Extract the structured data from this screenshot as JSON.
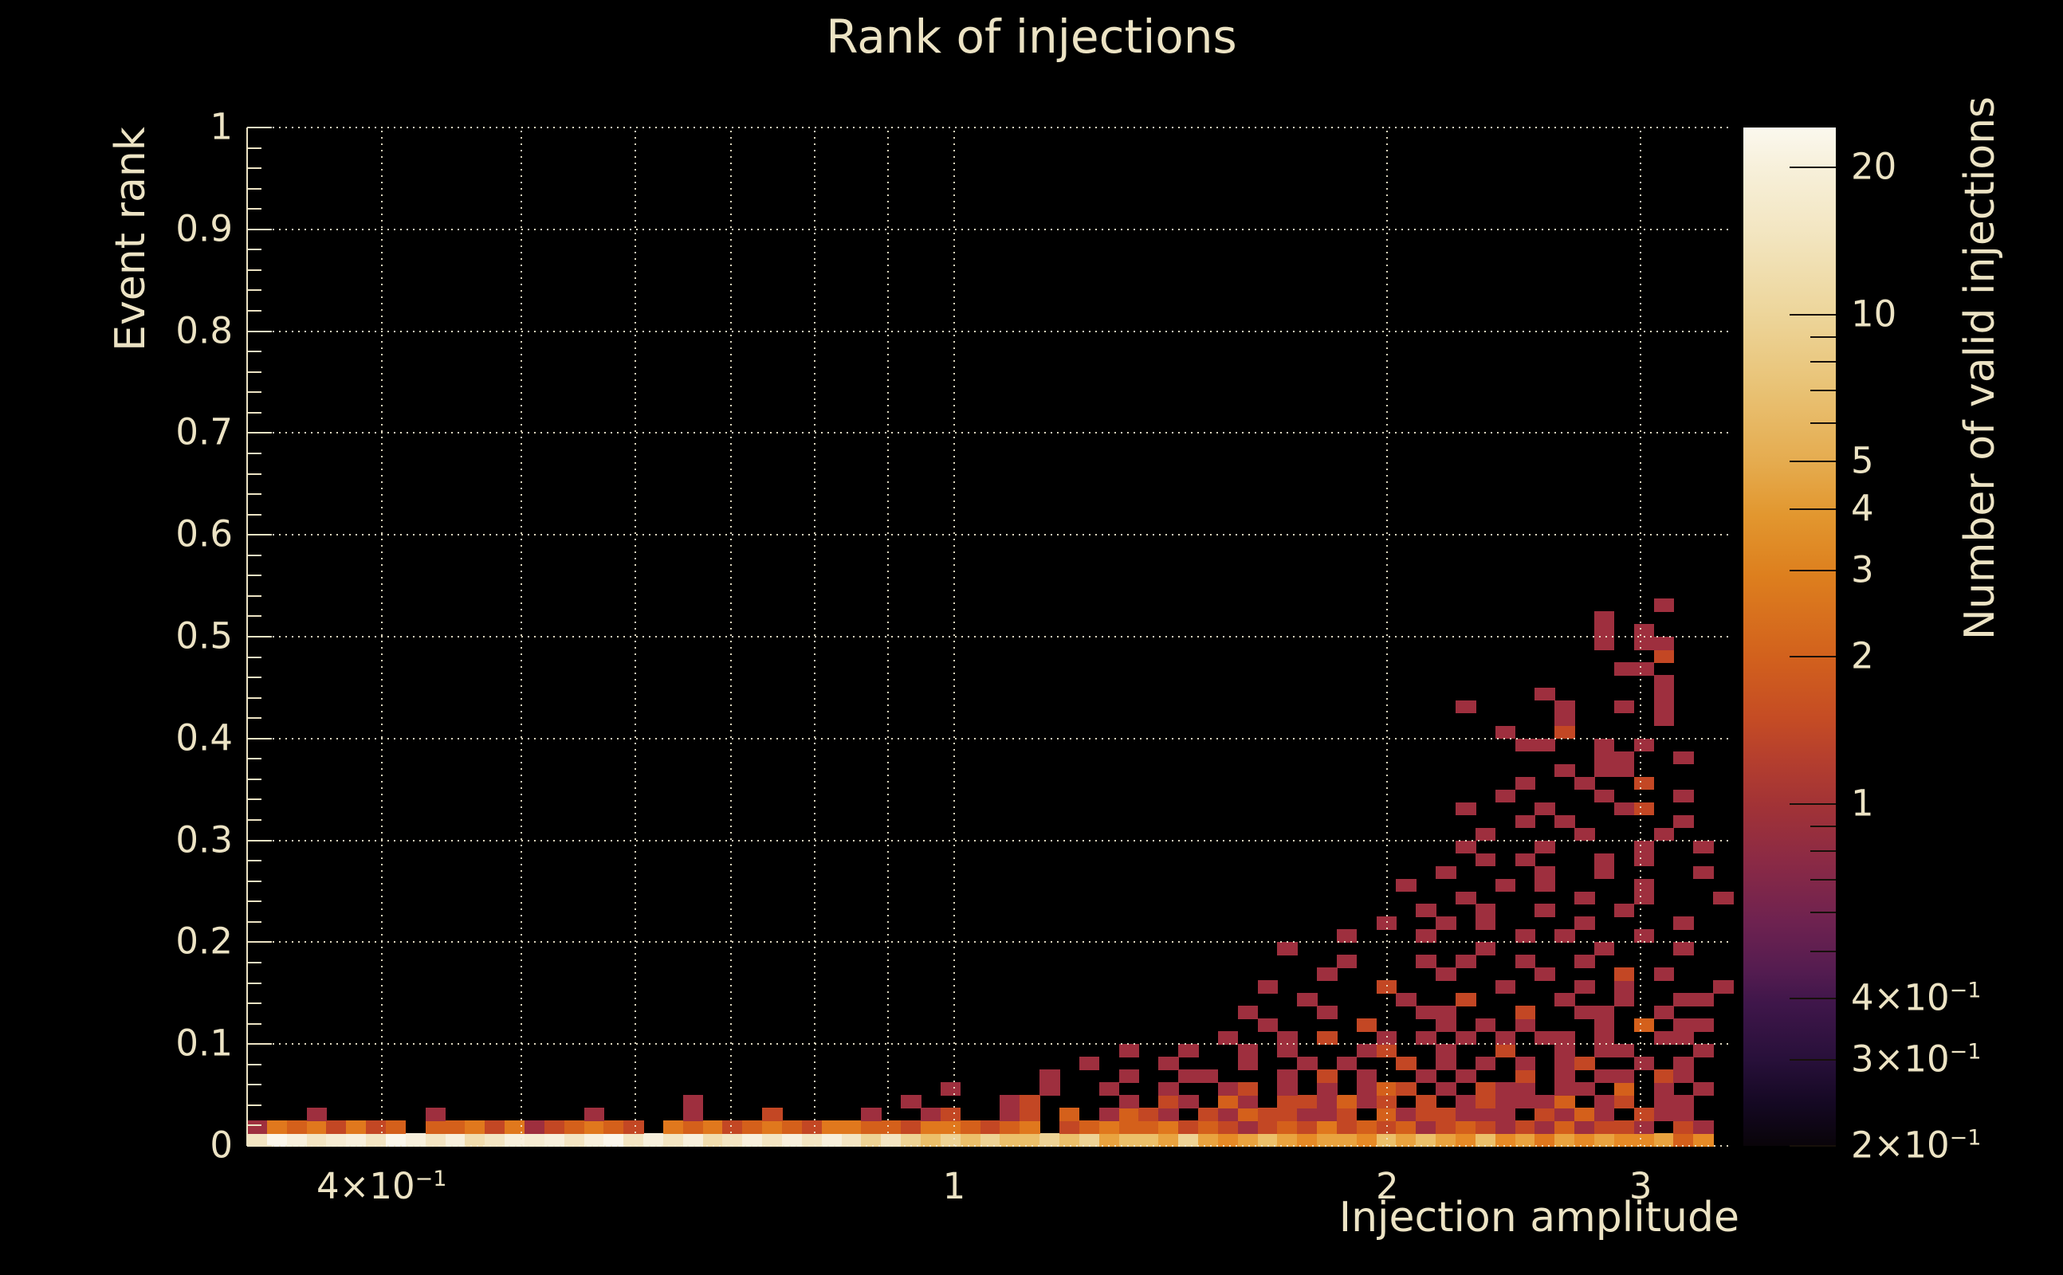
{
  "colors": {
    "background": "#000000",
    "text": "#ece3c4",
    "axis": "#ece3c4",
    "grid": "rgba(240,232,206,0.92)",
    "colorbar_tick": "#17100a",
    "palette": {
      "1": "#9e2f3e",
      "2": "#c34724",
      "3": "#d4601b",
      "4": "#e0781d",
      "5": "#e68a26",
      "7": "#e9a33f",
      "9": "#ecc06a",
      "b": "#eed395",
      "c": "#f1ddae",
      "d": "#f3e5c2",
      "e": "#f6ecd2",
      "f": "#f8f0dc",
      "g": "#fbf7eb"
    },
    "colorbar_stops": [
      [
        0.0,
        "#fbf8ee"
      ],
      [
        0.04,
        "#f7f0da"
      ],
      [
        0.1,
        "#f3e6c2"
      ],
      [
        0.18,
        "#edd69c"
      ],
      [
        0.25,
        "#e9c478"
      ],
      [
        0.33,
        "#e5ab4e"
      ],
      [
        0.38,
        "#e2972f"
      ],
      [
        0.44,
        "#dd7f1e"
      ],
      [
        0.52,
        "#d2611d"
      ],
      [
        0.58,
        "#c54c24"
      ],
      [
        0.62,
        "#b53f2e"
      ],
      [
        0.665,
        "#a23336"
      ],
      [
        0.72,
        "#8b2a45"
      ],
      [
        0.78,
        "#6e2250"
      ],
      [
        0.83,
        "#531c50"
      ],
      [
        0.86,
        "#3f164a"
      ],
      [
        0.915,
        "#28103a"
      ],
      [
        0.96,
        "#140822"
      ],
      [
        1.0,
        "#090409"
      ]
    ]
  },
  "chart_data": {
    "type": "heatmap",
    "title": "Rank of injections",
    "xlabel": "Injection amplitude",
    "ylabel": "Event rank",
    "zlabel": "Number of valid injections",
    "x_scale": "log",
    "y_scale": "linear",
    "z_scale": "log",
    "x_range": [
      0.323,
      3.48
    ],
    "y_range": [
      0,
      1
    ],
    "z_range": [
      0.2,
      24.1
    ],
    "grid": true,
    "x_ticks": [
      {
        "v": 0.4,
        "t": "4×10",
        "sup": "−1"
      },
      {
        "v": 1,
        "t": "1",
        "sup": ""
      },
      {
        "v": 2,
        "t": "2",
        "sup": ""
      },
      {
        "v": 3,
        "t": "3",
        "sup": ""
      }
    ],
    "grid_x_values": [
      0.4,
      0.5,
      0.6,
      0.7,
      0.8,
      0.9,
      1,
      2,
      3
    ],
    "y_tick_labels": [
      "0",
      "0.1",
      "0.2",
      "0.3",
      "0.4",
      "0.5",
      "0.6",
      "0.7",
      "0.8",
      "0.9",
      "1"
    ],
    "y_minor_step": 0.02,
    "z_ticks": [
      {
        "v": 20,
        "t": "20",
        "sup": ""
      },
      {
        "v": 10,
        "t": "10",
        "sup": ""
      },
      {
        "v": 5,
        "t": "5",
        "sup": ""
      },
      {
        "v": 4,
        "t": "4",
        "sup": ""
      },
      {
        "v": 3,
        "t": "3",
        "sup": ""
      },
      {
        "v": 2,
        "t": "2",
        "sup": ""
      },
      {
        "v": 1,
        "t": "1",
        "sup": ""
      },
      {
        "v": 0.4,
        "t": "4×10",
        "sup": "−1"
      },
      {
        "v": 0.3,
        "t": "3×10",
        "sup": "−1"
      },
      {
        "v": 0.2,
        "t": "2×10",
        "sup": "−1"
      }
    ],
    "z_minor_ticks": [
      9,
      8,
      7,
      6,
      0.9,
      0.8,
      0.7,
      0.6,
      0.5
    ],
    "bins": {
      "cols": 75,
      "rows": 80,
      "char_values": {
        "1": 1,
        "2": 2,
        "3": 3,
        "4": 4,
        "5": 5,
        "7": 7,
        "9": 10,
        "b": 13,
        "c": 15,
        "d": 17,
        "e": 19,
        "f": 21,
        "g": 23
      },
      "rows_bottom_up": [
        {
          "o": 0,
          "s": "dgfdefdgfdfcdfefdfgdfdfcdfdfdfdbdb9b9b99b9b7997b75797577597975957475755735."
        },
        {
          "o": 0,
          "s": "14342423.33424123432.4342343244332443234.234334232123242323123212131221.21."
        },
        {
          "o": 0,
          "s": "...1.....1.......1....1...2....1..12..12.3.1321.21322112.3122111.2131.211.."
        },
        {
          "o": 15,
          "s": ".......1..........1....12....1.21.31.221312.2.121113.12.11.."
        },
        {
          "o": 30,
          "s": ".....1....1..1..1..12.1.1.132.1.211.11.3.1.1."
        },
        {
          "o": 30,
          "s": "..........1...1..11...1.2.1..1.1..2.1.11.21.."
        },
        {
          "o": 30,
          "s": "............1...1...1..1.1..2.1.1.1.12..1.1.."
        },
        {
          "o": 30,
          "s": "..............1..1..1.1...12..1..2..1.11...1."
        },
        {
          "o": 45,
          "s": "....1..1.2..1.1.1.1.11.1..11.."
        },
        {
          "o": 45,
          "s": "......1....2...1.1.1...1.3.11."
        },
        {
          "o": 45,
          "s": ".....1...1....11...2..11..1..."
        },
        {
          "o": 45,
          "s": "........1....1..2....1..1..11."
        },
        {
          "o": 45,
          "s": "......1.....2.....1...1.1....1"
        },
        {
          "o": 45,
          "s": ".........1.....1....1...2.1..."
        },
        {
          "o": 45,
          "s": "..........1...1.1..1..1......."
        },
        {
          "o": 45,
          "s": ".......1.........1.....1...1.."
        },
        {
          "o": 45,
          "s": "..........1...1....1.1...1...."
        },
        {
          "o": 45,
          "s": "............1..1.1....1....1.."
        },
        {
          "o": 45,
          "s": "..............1..1..1...1....."
        },
        {
          "o": 60,
          "s": ".1.....1..1...1"
        },
        {
          "o": 45,
          "s": ".............1....1.1....1...."
        },
        {
          "o": 60,
          "s": "1....1..1....1."
        },
        {
          "o": 60,
          "s": "..1.1...1.1...."
        },
        {
          "o": 60,
          "s": ".1...1....1..1."
        },
        {
          "o": 60,
          "s": "..1....1...1..."
        },
        {
          "o": 60,
          "s": "....1.1.....1.."
        },
        {
          "o": 60,
          "s": ".1...1...12...."
        },
        {
          "o": 60,
          "s": "...1....1...1.."
        },
        {
          "o": 60,
          "s": "....1..1..2...."
        },
        {
          "o": 60,
          "s": "......1.11....."
        },
        {
          "o": 60,
          "s": "........11..1.."
        },
        {
          "o": 60,
          "s": "....11..1.1...."
        },
        {
          "o": 60,
          "s": "...1..2........"
        },
        {
          "o": 60,
          "s": "......1....1..."
        },
        {
          "o": 60,
          "s": ".1....1..1.1..."
        },
        {
          "o": 60,
          "s": ".....1.....1..."
        },
        {
          "o": 60,
          "s": "...........1..."
        },
        {
          "o": 60,
          "s": ".........11...."
        },
        {
          "o": 60,
          "s": "...........2..."
        },
        {
          "o": 60,
          "s": "........1.11..."
        },
        {
          "o": 60,
          "s": "........1.1...."
        },
        {
          "o": 60,
          "s": "........1......"
        },
        {
          "o": 60,
          "s": "...........1..."
        }
      ]
    }
  }
}
